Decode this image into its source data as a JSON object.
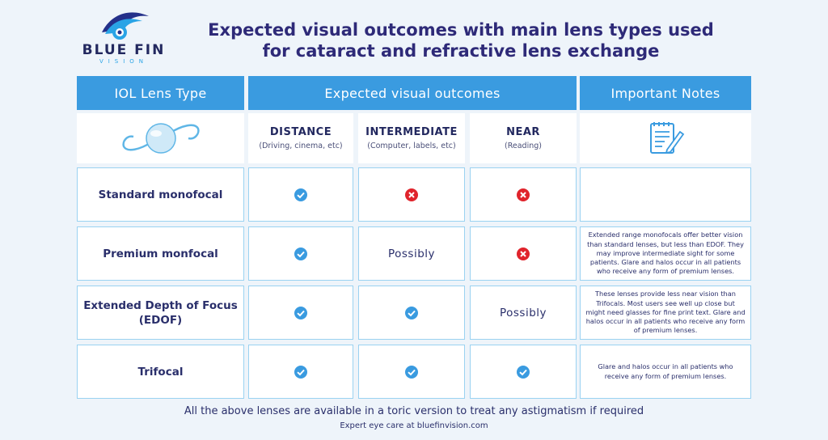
{
  "brand": {
    "name": "BLUE FIN",
    "sub": "VISION"
  },
  "title": {
    "line1": "Expected visual outcomes with main lens types used",
    "line2": "for cataract and refractive lens exchange"
  },
  "table": {
    "headers": {
      "lens_type": "IOL Lens Type",
      "outcomes": "Expected visual outcomes",
      "notes": "Important Notes"
    },
    "columns": [
      {
        "name": "DISTANCE",
        "sub": "(Driving, cinema, etc)"
      },
      {
        "name": "INTERMEDIATE",
        "sub": "(Computer, labels, etc)"
      },
      {
        "name": "NEAR",
        "sub": "(Reading)"
      }
    ],
    "rows": [
      {
        "lens": "Standard monofocal",
        "distance": {
          "type": "check"
        },
        "intermediate": {
          "type": "cross"
        },
        "near": {
          "type": "cross"
        },
        "note": ""
      },
      {
        "lens": "Premium monfocal",
        "distance": {
          "type": "check"
        },
        "intermediate": {
          "type": "text",
          "text": "Possibly"
        },
        "near": {
          "type": "cross"
        },
        "note": "Extended range monofocals offer better vision than standard lenses, but less than EDOF. They may improve intermediate sight for some patients. Glare and halos occur in all patients who receive any form of premium lenses."
      },
      {
        "lens": "Extended Depth of Focus (EDOF)",
        "distance": {
          "type": "check"
        },
        "intermediate": {
          "type": "check"
        },
        "near": {
          "type": "text",
          "text": "Possibly"
        },
        "note": "These lenses provide less near vision than Trifocals. Most users see well up close but might need glasses for fine print text. Glare and halos occur in all patients who receive any form of premium lenses."
      },
      {
        "lens": "Trifocal",
        "distance": {
          "type": "check"
        },
        "intermediate": {
          "type": "check"
        },
        "near": {
          "type": "check"
        },
        "note": "Glare and halos occur in all patients who receive any form of premium lenses."
      }
    ]
  },
  "icons": {
    "lens": "intraocular-lens-icon",
    "notes": "notepad-pencil-icon",
    "check": "check-circle-icon",
    "cross": "cross-circle-icon"
  },
  "colors": {
    "header_bg": "#3a9be0",
    "border": "#9ad2f1",
    "check": "#3a9be0",
    "cross": "#e0242c",
    "title": "#2e2a78"
  },
  "footer": {
    "line1": "All the above lenses are available in a toric version to treat any astigmatism if required",
    "line2": "Expert eye care at bluefinvision.com"
  }
}
